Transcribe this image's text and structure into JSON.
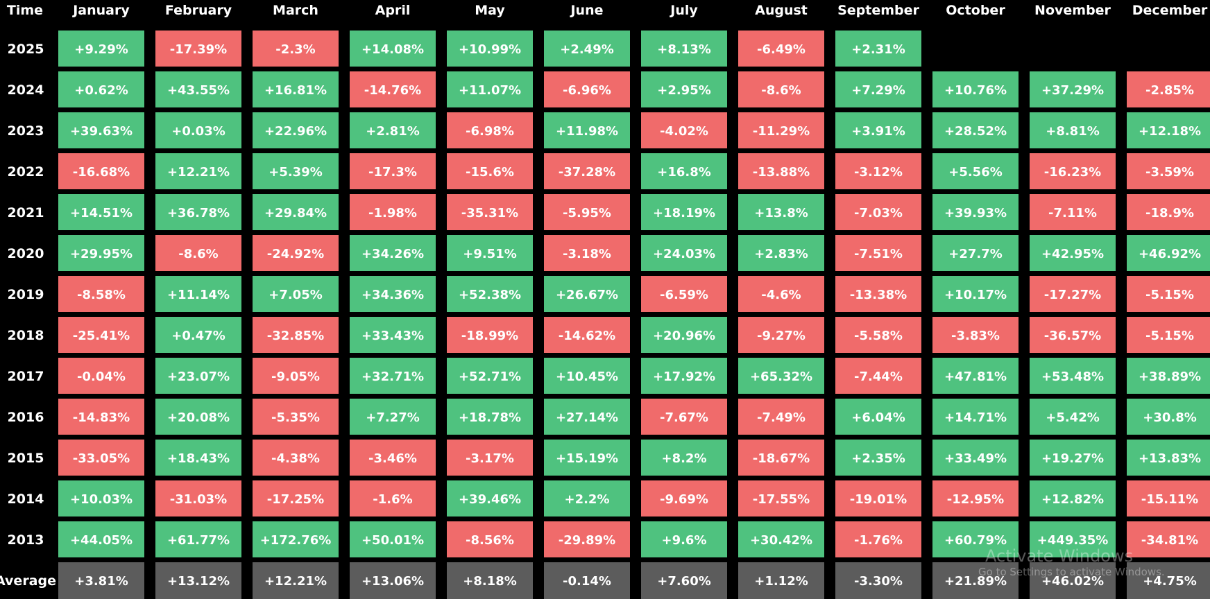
{
  "colors": {
    "positive": "#4fc27f",
    "negative": "#f06b6b",
    "average": "#5c5c5c",
    "background": "#000000",
    "text": "#ffffff"
  },
  "chart_data": {
    "type": "heatmap",
    "corner_label": "Time",
    "columns": [
      "January",
      "February",
      "March",
      "April",
      "May",
      "June",
      "July",
      "August",
      "September",
      "October",
      "November",
      "December"
    ],
    "rows": [
      {
        "year": "2025",
        "values": [
          "+9.29%",
          "-17.39%",
          "-2.3%",
          "+14.08%",
          "+10.99%",
          "+2.49%",
          "+8.13%",
          "-6.49%",
          "+2.31%",
          null,
          null,
          null
        ]
      },
      {
        "year": "2024",
        "values": [
          "+0.62%",
          "+43.55%",
          "+16.81%",
          "-14.76%",
          "+11.07%",
          "-6.96%",
          "+2.95%",
          "-8.6%",
          "+7.29%",
          "+10.76%",
          "+37.29%",
          "-2.85%"
        ]
      },
      {
        "year": "2023",
        "values": [
          "+39.63%",
          "+0.03%",
          "+22.96%",
          "+2.81%",
          "-6.98%",
          "+11.98%",
          "-4.02%",
          "-11.29%",
          "+3.91%",
          "+28.52%",
          "+8.81%",
          "+12.18%"
        ]
      },
      {
        "year": "2022",
        "values": [
          "-16.68%",
          "+12.21%",
          "+5.39%",
          "-17.3%",
          "-15.6%",
          "-37.28%",
          "+16.8%",
          "-13.88%",
          "-3.12%",
          "+5.56%",
          "-16.23%",
          "-3.59%"
        ]
      },
      {
        "year": "2021",
        "values": [
          "+14.51%",
          "+36.78%",
          "+29.84%",
          "-1.98%",
          "-35.31%",
          "-5.95%",
          "+18.19%",
          "+13.8%",
          "-7.03%",
          "+39.93%",
          "-7.11%",
          "-18.9%"
        ]
      },
      {
        "year": "2020",
        "values": [
          "+29.95%",
          "-8.6%",
          "-24.92%",
          "+34.26%",
          "+9.51%",
          "-3.18%",
          "+24.03%",
          "+2.83%",
          "-7.51%",
          "+27.7%",
          "+42.95%",
          "+46.92%"
        ]
      },
      {
        "year": "2019",
        "values": [
          "-8.58%",
          "+11.14%",
          "+7.05%",
          "+34.36%",
          "+52.38%",
          "+26.67%",
          "-6.59%",
          "-4.6%",
          "-13.38%",
          "+10.17%",
          "-17.27%",
          "-5.15%"
        ]
      },
      {
        "year": "2018",
        "values": [
          "-25.41%",
          "+0.47%",
          "-32.85%",
          "+33.43%",
          "-18.99%",
          "-14.62%",
          "+20.96%",
          "-9.27%",
          "-5.58%",
          "-3.83%",
          "-36.57%",
          "-5.15%"
        ]
      },
      {
        "year": "2017",
        "values": [
          "-0.04%",
          "+23.07%",
          "-9.05%",
          "+32.71%",
          "+52.71%",
          "+10.45%",
          "+17.92%",
          "+65.32%",
          "-7.44%",
          "+47.81%",
          "+53.48%",
          "+38.89%"
        ]
      },
      {
        "year": "2016",
        "values": [
          "-14.83%",
          "+20.08%",
          "-5.35%",
          "+7.27%",
          "+18.78%",
          "+27.14%",
          "-7.67%",
          "-7.49%",
          "+6.04%",
          "+14.71%",
          "+5.42%",
          "+30.8%"
        ]
      },
      {
        "year": "2015",
        "values": [
          "-33.05%",
          "+18.43%",
          "-4.38%",
          "-3.46%",
          "-3.17%",
          "+15.19%",
          "+8.2%",
          "-18.67%",
          "+2.35%",
          "+33.49%",
          "+19.27%",
          "+13.83%"
        ]
      },
      {
        "year": "2014",
        "values": [
          "+10.03%",
          "-31.03%",
          "-17.25%",
          "-1.6%",
          "+39.46%",
          "+2.2%",
          "-9.69%",
          "-17.55%",
          "-19.01%",
          "-12.95%",
          "+12.82%",
          "-15.11%"
        ]
      },
      {
        "year": "2013",
        "values": [
          "+44.05%",
          "+61.77%",
          "+172.76%",
          "+50.01%",
          "-8.56%",
          "-29.89%",
          "+9.6%",
          "+30.42%",
          "-1.76%",
          "+60.79%",
          "+449.35%",
          "-34.81%"
        ]
      }
    ],
    "average": {
      "label": "Average",
      "values": [
        "+3.81%",
        "+13.12%",
        "+12.21%",
        "+13.06%",
        "+8.18%",
        "-0.14%",
        "+7.60%",
        "+1.12%",
        "-3.30%",
        "+21.89%",
        "+46.02%",
        "+4.75%"
      ]
    }
  },
  "watermark": {
    "title": "Activate Windows",
    "subtitle": "Go to Settings to activate Windows."
  }
}
